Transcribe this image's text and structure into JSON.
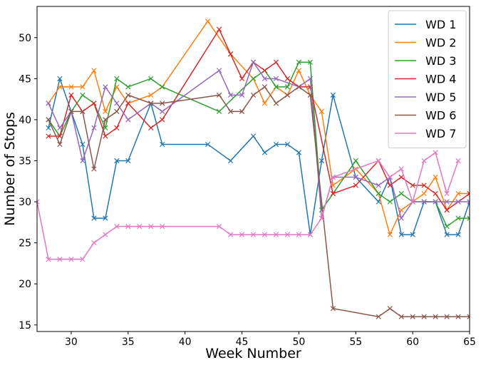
{
  "chart_data": {
    "type": "line",
    "title": "",
    "xlabel": "Week Number",
    "ylabel": "Number of Stops",
    "xlim": [
      27,
      65
    ],
    "ylim": [
      14.2,
      53.8
    ],
    "xticks": [
      30,
      35,
      40,
      45,
      50,
      55,
      60,
      65
    ],
    "yticks": [
      15,
      20,
      25,
      30,
      35,
      40,
      45,
      50
    ],
    "grid": false,
    "legend_position": "top-right",
    "marker": "x",
    "series": [
      {
        "name": "WD 1",
        "color": "#1f77b4",
        "x": [
          28,
          29,
          30,
          31,
          32,
          33,
          34,
          35,
          37,
          38,
          42,
          44,
          46,
          47,
          48,
          49,
          50,
          51,
          52,
          53,
          55,
          57,
          58,
          59,
          60,
          61,
          62,
          63,
          64,
          65
        ],
        "y": [
          39,
          45,
          41,
          37,
          28,
          28,
          35,
          35,
          42,
          37,
          37,
          35,
          38,
          36,
          37,
          37,
          36,
          26,
          35,
          43,
          33,
          30,
          33,
          26,
          26,
          30,
          30,
          26,
          26,
          30
        ]
      },
      {
        "name": "WD 2",
        "color": "#ff7f0e",
        "x": [
          28,
          29,
          30,
          31,
          32,
          33,
          34,
          35,
          37,
          38,
          42,
          44,
          46,
          47,
          48,
          49,
          50,
          51,
          52,
          53,
          55,
          57,
          58,
          59,
          60,
          61,
          62,
          63,
          64,
          65
        ],
        "y": [
          42,
          44,
          44,
          44,
          46,
          41,
          44,
          42,
          43,
          44,
          52,
          48,
          45,
          42,
          44,
          43,
          46,
          43,
          41,
          32,
          34,
          31,
          26,
          29,
          30,
          31,
          33,
          29,
          31,
          31
        ]
      },
      {
        "name": "WD 3",
        "color": "#2ca02c",
        "x": [
          28,
          29,
          30,
          31,
          32,
          33,
          34,
          35,
          37,
          38,
          43,
          46,
          47,
          48,
          49,
          50,
          51,
          52,
          53,
          55,
          57,
          58,
          59,
          60,
          61,
          62,
          63,
          64,
          65
        ],
        "y": [
          40,
          38,
          41,
          43,
          42,
          39,
          45,
          44,
          45,
          44,
          41,
          45,
          46,
          44,
          44,
          47,
          47,
          29,
          31,
          35,
          31,
          30,
          31,
          30,
          30,
          30,
          27,
          28,
          28
        ]
      },
      {
        "name": "WD 4",
        "color": "#d62728",
        "x": [
          28,
          29,
          30,
          31,
          32,
          33,
          34,
          35,
          37,
          38,
          43,
          44,
          45,
          46,
          47,
          48,
          49,
          50,
          51,
          53,
          55,
          57,
          58,
          59,
          60,
          61,
          62,
          63,
          64,
          65
        ],
        "y": [
          38,
          38,
          43,
          41,
          42,
          38,
          39,
          42,
          39,
          40,
          51,
          48,
          45,
          47,
          46,
          47,
          45,
          44,
          44,
          31,
          32,
          35,
          32,
          33,
          32,
          32,
          31,
          29,
          30,
          31
        ]
      },
      {
        "name": "WD 5",
        "color": "#9467bd",
        "x": [
          28,
          29,
          30,
          31,
          32,
          33,
          34,
          35,
          37,
          38,
          43,
          44,
          45,
          46,
          47,
          48,
          50,
          51,
          52,
          53,
          55,
          57,
          58,
          59,
          60,
          61,
          62,
          63,
          64,
          65
        ],
        "y": [
          42,
          39,
          41,
          35,
          39,
          44,
          42,
          40,
          42,
          41,
          46,
          43,
          43,
          47,
          45,
          45,
          44,
          45,
          28,
          33,
          33,
          32,
          33,
          28,
          30,
          30,
          30,
          30,
          30,
          30
        ]
      },
      {
        "name": "WD 6",
        "color": "#8c564b",
        "x": [
          28,
          29,
          30,
          31,
          32,
          33,
          34,
          35,
          37,
          38,
          43,
          44,
          45,
          46,
          47,
          48,
          49,
          50,
          51,
          53,
          57,
          58,
          59,
          60,
          61,
          62,
          63,
          64,
          65
        ],
        "y": [
          40,
          37,
          41,
          41,
          34,
          40,
          41,
          43,
          42,
          42,
          43,
          41,
          41,
          43,
          44,
          42,
          43,
          44,
          43,
          17,
          16,
          17,
          16,
          16,
          16,
          16,
          16,
          16,
          16
        ]
      },
      {
        "name": "WD 7",
        "color": "#e377c2",
        "x": [
          27,
          28,
          29,
          30,
          31,
          32,
          33,
          34,
          35,
          36,
          37,
          38,
          43,
          44,
          45,
          46,
          47,
          48,
          49,
          50,
          51,
          52,
          53,
          57,
          58,
          59,
          60,
          61,
          62,
          63,
          64
        ],
        "y": [
          30,
          23,
          23,
          23,
          23,
          25,
          26,
          27,
          27,
          27,
          27,
          27,
          27,
          26,
          26,
          26,
          26,
          26,
          26,
          26,
          26,
          28,
          33,
          35,
          33,
          34,
          30,
          35,
          36,
          31,
          35
        ]
      }
    ]
  }
}
